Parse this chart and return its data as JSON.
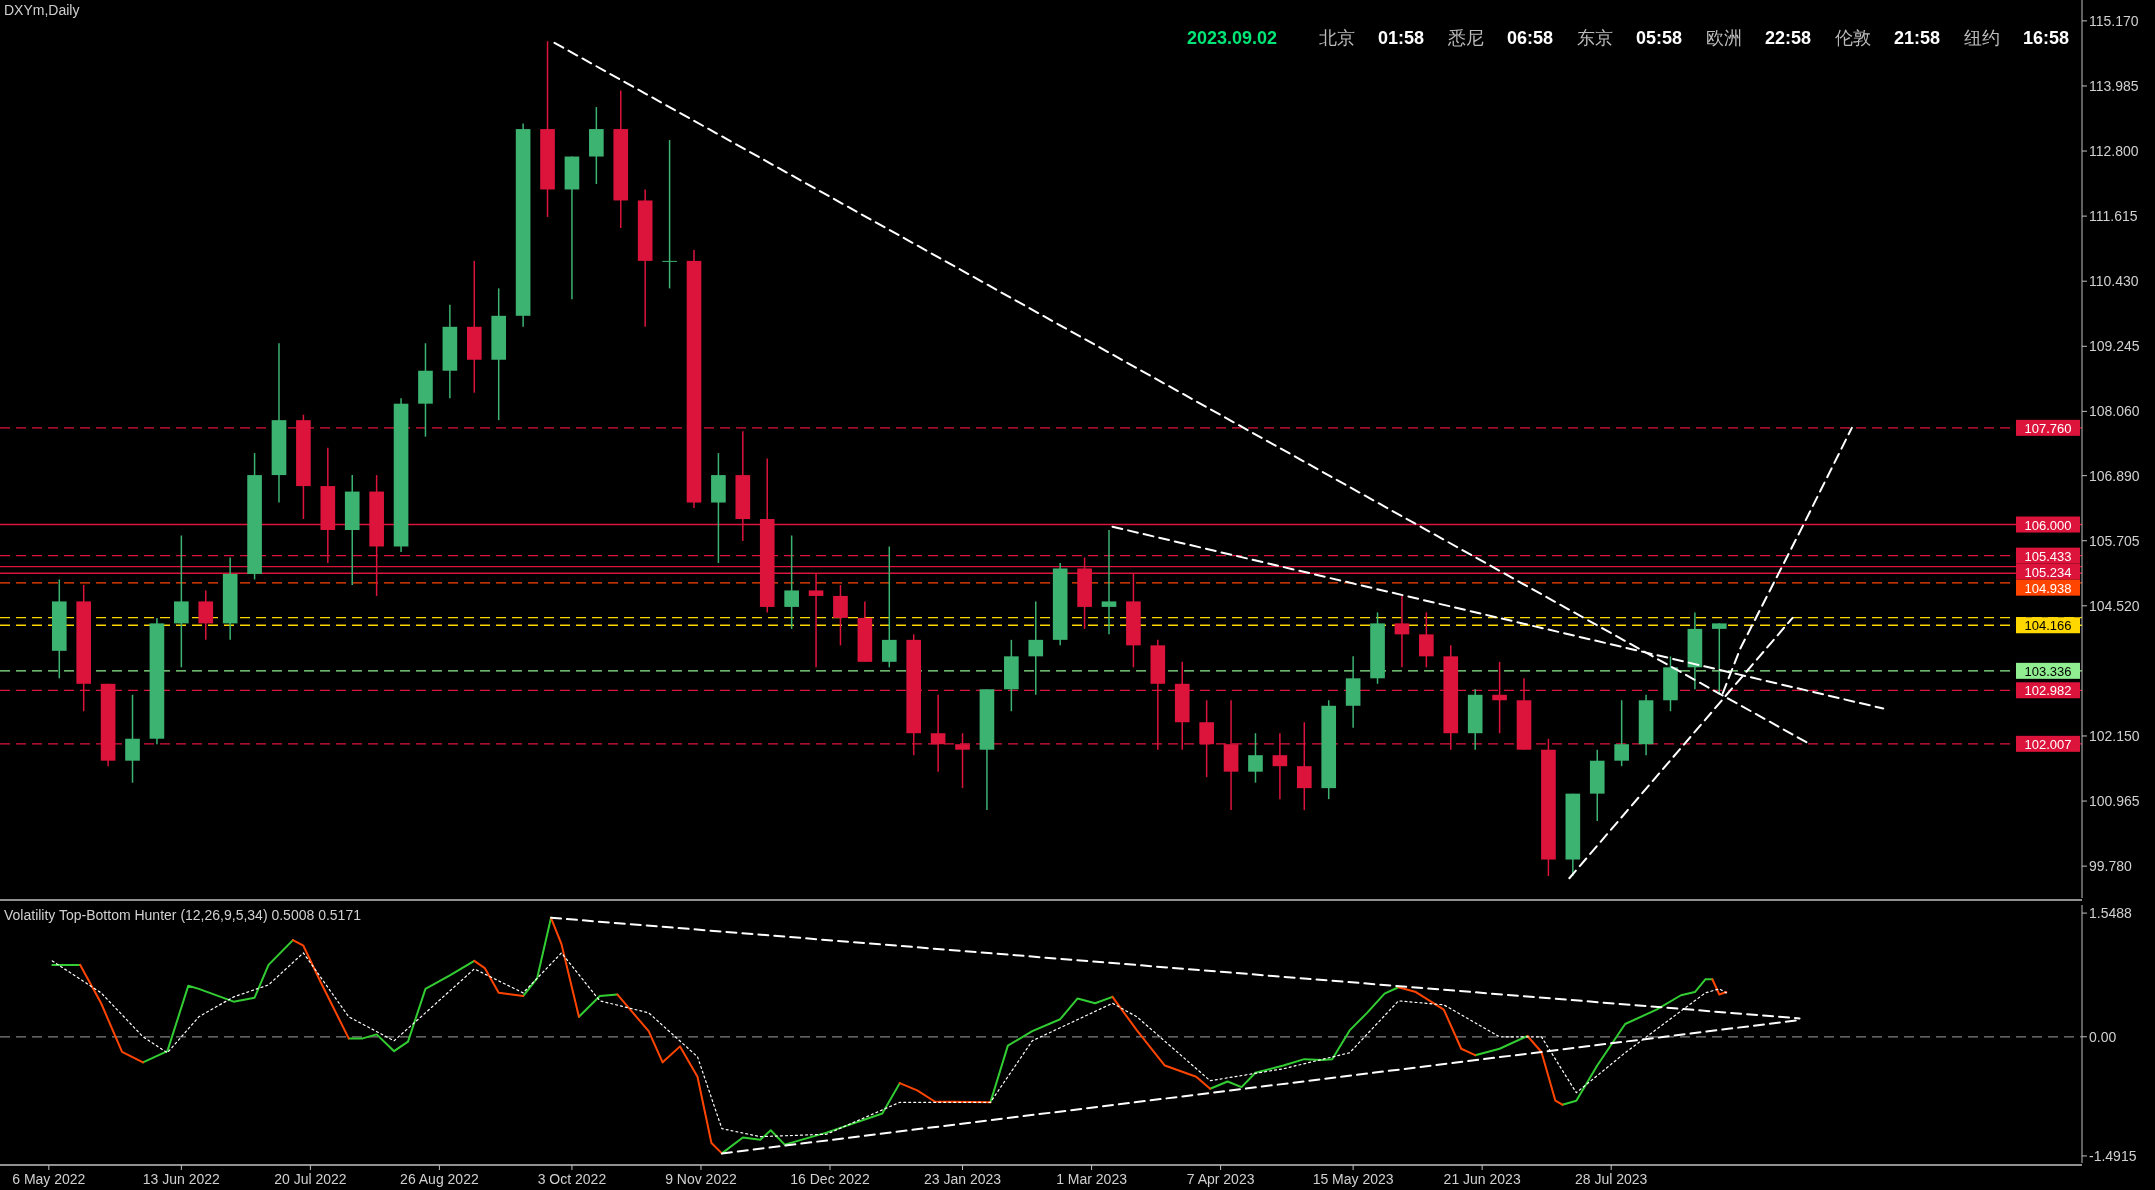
{
  "chart_data": [
    {
      "type": "candlestick",
      "title": "DXYm,Daily",
      "annotations": [
        "2023.09.02",
        "北京",
        "01:58",
        "悉尼",
        "06:58",
        "东京",
        "05:58",
        "欧洲",
        "22:58",
        "伦敦",
        "21:58",
        "纽约",
        "16:58"
      ],
      "x": [
        "2022-05-09",
        "2022-05-16",
        "2022-05-23",
        "2022-05-30",
        "2022-06-06",
        "2022-06-13",
        "2022-06-20",
        "2022-06-27",
        "2022-07-04",
        "2022-07-11",
        "2022-07-18",
        "2022-07-25",
        "2022-08-01",
        "2022-08-08",
        "2022-08-15",
        "2022-08-22",
        "2022-08-29",
        "2022-09-05",
        "2022-09-12",
        "2022-09-19",
        "2022-09-26",
        "2022-10-03",
        "2022-10-10",
        "2022-10-17",
        "2022-10-24",
        "2022-10-31",
        "2022-11-07",
        "2022-11-14",
        "2022-11-21",
        "2022-11-28",
        "2022-12-05",
        "2022-12-12",
        "2022-12-19",
        "2022-12-26",
        "2023-01-02",
        "2023-01-09",
        "2023-01-16",
        "2023-01-23",
        "2023-01-30",
        "2023-02-06",
        "2023-02-13",
        "2023-02-20",
        "2023-02-27",
        "2023-03-06",
        "2023-03-13",
        "2023-03-20",
        "2023-03-27",
        "2023-04-03",
        "2023-04-10",
        "2023-04-17",
        "2023-04-24",
        "2023-05-01",
        "2023-05-08",
        "2023-05-15",
        "2023-05-22",
        "2023-05-29",
        "2023-06-05",
        "2023-06-12",
        "2023-06-19",
        "2023-06-26",
        "2023-07-03",
        "2023-07-10",
        "2023-07-17",
        "2023-07-24",
        "2023-07-31",
        "2023-08-07",
        "2023-08-14",
        "2023-08-21",
        "2023-08-28"
      ],
      "ohlc": [
        [
          103.7,
          105.0,
          103.2,
          104.6
        ],
        [
          104.6,
          104.9,
          102.6,
          103.1
        ],
        [
          103.1,
          103.1,
          101.6,
          101.7
        ],
        [
          101.7,
          102.9,
          101.3,
          102.1
        ],
        [
          102.1,
          104.3,
          102.0,
          104.2
        ],
        [
          104.2,
          105.8,
          103.4,
          104.6
        ],
        [
          104.6,
          104.8,
          103.9,
          104.2
        ],
        [
          104.2,
          105.4,
          103.9,
          105.1
        ],
        [
          105.1,
          107.3,
          105.0,
          106.9
        ],
        [
          106.9,
          109.3,
          106.4,
          107.9
        ],
        [
          107.9,
          108.0,
          106.1,
          106.7
        ],
        [
          106.7,
          107.4,
          105.3,
          105.9
        ],
        [
          105.9,
          106.9,
          104.9,
          106.6
        ],
        [
          106.6,
          106.9,
          104.7,
          105.6
        ],
        [
          105.6,
          108.3,
          105.5,
          108.2
        ],
        [
          108.2,
          109.3,
          107.6,
          108.8
        ],
        [
          108.8,
          110.0,
          108.3,
          109.6
        ],
        [
          109.6,
          110.8,
          108.4,
          109.0
        ],
        [
          109.0,
          110.3,
          107.9,
          109.8
        ],
        [
          109.8,
          113.3,
          109.6,
          113.2
        ],
        [
          113.2,
          114.8,
          111.6,
          112.1
        ],
        [
          112.1,
          112.7,
          110.1,
          112.7
        ],
        [
          112.7,
          113.6,
          112.2,
          113.2
        ],
        [
          113.2,
          113.9,
          111.4,
          111.9
        ],
        [
          111.9,
          112.1,
          109.6,
          110.8
        ],
        [
          110.8,
          113.0,
          110.3,
          110.8
        ],
        [
          110.8,
          111.0,
          106.3,
          106.4
        ],
        [
          106.4,
          107.3,
          105.3,
          106.9
        ],
        [
          106.9,
          107.7,
          105.7,
          106.1
        ],
        [
          106.1,
          107.2,
          104.4,
          104.5
        ],
        [
          104.5,
          105.8,
          104.1,
          104.8
        ],
        [
          104.8,
          105.1,
          103.4,
          104.7
        ],
        [
          104.7,
          104.9,
          103.8,
          104.3
        ],
        [
          104.3,
          104.6,
          103.5,
          103.5
        ],
        [
          103.5,
          105.6,
          103.4,
          103.9
        ],
        [
          103.9,
          104.0,
          101.8,
          102.2
        ],
        [
          102.2,
          102.9,
          101.5,
          102.0
        ],
        [
          102.0,
          102.2,
          101.2,
          101.9
        ],
        [
          101.9,
          103.0,
          100.8,
          103.0
        ],
        [
          103.0,
          103.9,
          102.6,
          103.6
        ],
        [
          103.6,
          104.6,
          102.9,
          103.9
        ],
        [
          103.9,
          105.3,
          103.8,
          105.2
        ],
        [
          105.2,
          105.4,
          104.1,
          104.5
        ],
        [
          104.5,
          105.9,
          104.0,
          104.6
        ],
        [
          104.6,
          105.1,
          103.4,
          103.8
        ],
        [
          103.8,
          103.9,
          101.9,
          103.1
        ],
        [
          103.1,
          103.5,
          101.9,
          102.4
        ],
        [
          102.4,
          102.8,
          101.4,
          102.0
        ],
        [
          102.0,
          102.8,
          100.8,
          101.5
        ],
        [
          101.5,
          102.2,
          101.3,
          101.8
        ],
        [
          101.8,
          102.2,
          101.0,
          101.6
        ],
        [
          101.6,
          102.4,
          100.8,
          101.2
        ],
        [
          101.2,
          102.8,
          101.0,
          102.7
        ],
        [
          102.7,
          103.6,
          102.3,
          103.2
        ],
        [
          103.2,
          104.4,
          103.1,
          104.2
        ],
        [
          104.2,
          104.7,
          103.4,
          104.0
        ],
        [
          104.0,
          104.4,
          103.4,
          103.6
        ],
        [
          103.6,
          103.8,
          101.9,
          102.2
        ],
        [
          102.2,
          103.0,
          101.9,
          102.9
        ],
        [
          102.9,
          103.5,
          102.2,
          102.8
        ],
        [
          102.8,
          103.2,
          101.9,
          101.9
        ],
        [
          101.9,
          102.1,
          99.6,
          99.9
        ],
        [
          99.9,
          101.1,
          99.6,
          101.1
        ],
        [
          101.1,
          101.9,
          100.6,
          101.7
        ],
        [
          101.7,
          102.8,
          101.6,
          102.0
        ],
        [
          102.0,
          102.9,
          101.8,
          102.8
        ],
        [
          102.8,
          103.6,
          102.6,
          103.4
        ],
        [
          103.4,
          104.4,
          103.0,
          104.1
        ],
        [
          104.1,
          104.2,
          102.9,
          104.2
        ]
      ],
      "series": [
        {
          "type": "line",
          "color": "#ffffff",
          "line_style": "dashed",
          "x": [
            "2022-09-28",
            "2023-09-23"
          ],
          "values": [
            114.77,
            102.0
          ]
        },
        {
          "type": "line",
          "color": "#ffffff",
          "line_style": "dashed",
          "x": [
            "2023-03-07",
            "2023-10-14"
          ],
          "values": [
            105.96,
            102.65
          ]
        },
        {
          "type": "line",
          "color": "#ffffff",
          "line_style": "dashed",
          "x": [
            "2023-07-16",
            "2023-09-18"
          ],
          "values": [
            99.56,
            104.3
          ]
        },
        {
          "type": "line",
          "color": "#ffffff",
          "line_style": "dashed",
          "x": [
            "2023-08-29",
            "2023-09-03",
            "2023-09-21",
            "2023-10-05"
          ],
          "values": [
            102.93,
            103.74,
            105.98,
            107.76
          ]
        }
      ],
      "ref_lines": [
        {
          "axis": "y",
          "value": 107.76,
          "label": "107.760",
          "color": "#dc143c",
          "line_style": "dashed"
        },
        {
          "axis": "y",
          "value": 106.0,
          "label": "106.000",
          "color": "#dc143c",
          "line_style": "solid"
        },
        {
          "axis": "y",
          "value": 105.433,
          "label": "105.433",
          "color": "#dc143c",
          "line_style": "dashed"
        },
        {
          "axis": "y",
          "value": 105.234,
          "label": "105.234",
          "color": "#dc143c",
          "line_style": "solid"
        },
        {
          "axis": "y",
          "value": 105.113,
          "label": null,
          "color": "#dc143c",
          "line_style": "solid"
        },
        {
          "axis": "y",
          "value": 104.938,
          "label": "104.938",
          "color": "#ff4500",
          "line_style": "dashed"
        },
        {
          "axis": "y",
          "value": 104.306,
          "label": null,
          "color": "#ffd700",
          "line_style": "dashed"
        },
        {
          "axis": "y",
          "value": 104.166,
          "label": "104.166",
          "color": "#ffd700",
          "line_style": "dashed"
        },
        {
          "axis": "y",
          "value": 103.336,
          "label": "103.336",
          "color": "#90ee90",
          "line_style": "dashed"
        },
        {
          "axis": "y",
          "value": 102.982,
          "label": "102.982",
          "color": "#dc143c",
          "line_style": "dashed"
        },
        {
          "axis": "y",
          "value": 102.007,
          "label": "102.007",
          "color": "#dc143c",
          "line_style": "dashed"
        }
      ],
      "xlim": [
        "2022-04-22",
        "2023-12-10"
      ],
      "ylim": [
        99.2,
        115.55
      ],
      "yticks": [
        {
          "value": 115.17,
          "label": "115.170"
        },
        113.985,
        {
          "value": 112.8,
          "label": "112.800"
        },
        111.615,
        {
          "value": 110.43,
          "label": "110.430"
        },
        109.245,
        {
          "value": 108.06,
          "label": "108.060"
        },
        {
          "value": 106.89,
          "label": "106.890"
        },
        105.705,
        {
          "value": 104.52,
          "label": "104.520"
        },
        {
          "value": 102.15,
          "label": "102.150"
        },
        100.965,
        {
          "value": 99.78,
          "label": "99.780"
        }
      ],
      "tick_labels": "y"
    },
    {
      "type": "line",
      "title": "Volatility Top-Bottom Hunter (12,26,9,5,34) 0.5008 0.5171",
      "x": [
        "2022-05-07",
        "2022-05-15",
        "2022-05-21",
        "2022-05-27",
        "2022-06-02",
        "2022-06-09",
        "2022-06-15",
        "2022-06-18",
        "2022-06-28",
        "2022-07-04",
        "2022-07-08",
        "2022-07-15",
        "2022-07-18",
        "2022-07-23",
        "2022-07-31",
        "2022-08-04",
        "2022-08-08",
        "2022-08-13",
        "2022-08-17",
        "2022-08-22",
        "2022-08-29",
        "2022-09-05",
        "2022-09-08",
        "2022-09-12",
        "2022-09-19",
        "2022-09-23",
        "2022-09-27",
        "2022-09-30",
        "2022-10-05",
        "2022-10-11",
        "2022-10-16",
        "2022-10-25",
        "2022-10-29",
        "2022-11-03",
        "2022-11-08",
        "2022-11-12",
        "2022-11-15",
        "2022-11-21",
        "2022-11-26",
        "2022-11-29",
        "2022-12-03",
        "2022-12-15",
        "2022-12-31",
        "2023-01-05",
        "2023-01-10",
        "2023-01-15",
        "2023-01-31",
        "2023-02-05",
        "2023-02-12",
        "2023-02-20",
        "2023-02-25",
        "2023-03-02",
        "2023-03-07",
        "2023-03-14",
        "2023-03-22",
        "2023-03-31",
        "2023-04-04",
        "2023-04-09",
        "2023-04-13",
        "2023-04-17",
        "2023-04-25",
        "2023-05-01",
        "2023-05-06",
        "2023-05-09",
        "2023-05-14",
        "2023-05-19",
        "2023-05-24",
        "2023-05-28",
        "2023-06-02",
        "2023-06-10",
        "2023-06-15",
        "2023-06-19",
        "2023-06-26",
        "2023-07-04",
        "2023-07-08",
        "2023-07-12",
        "2023-07-14",
        "2023-07-18",
        "2023-07-24",
        "2023-08-01",
        "2023-08-10",
        "2023-08-17",
        "2023-08-21",
        "2023-08-24",
        "2023-08-26",
        "2023-08-28",
        "2023-08-30"
      ],
      "series": [
        {
          "color": "#32cd32",
          "values": [
            0.9,
            0.9,
            null,
            null,
            -0.32,
            -0.18,
            0.64,
            0.6,
            0.44,
            0.49,
            0.9,
            1.21,
            null,
            null,
            -0.02,
            -0.02,
            0.03,
            -0.18,
            -0.06,
            0.6,
            0.77,
            0.95,
            null,
            null,
            0.51,
            0.73,
            1.49,
            null,
            0.25,
            0.51,
            0.53,
            null,
            null,
            null,
            null,
            null,
            -1.46,
            -1.26,
            -1.29,
            -1.17,
            -1.35,
            -1.2,
            -0.96,
            -0.58,
            null,
            null,
            -0.82,
            -0.11,
            0.07,
            0.22,
            0.48,
            0.42,
            0.5,
            null,
            null,
            null,
            -0.65,
            -0.56,
            -0.63,
            -0.45,
            -0.36,
            -0.28,
            -0.29,
            -0.28,
            0.08,
            0.3,
            0.54,
            0.62,
            null,
            null,
            null,
            -0.23,
            -0.15,
            0.01,
            null,
            null,
            -0.85,
            -0.8,
            -0.36,
            0.16,
            0.34,
            0.52,
            0.56,
            0.72,
            0.72,
            null,
            null
          ]
        },
        {
          "color": "#ff4500",
          "values": [
            null,
            0.9,
            0.42,
            -0.19,
            -0.32,
            null,
            null,
            null,
            null,
            null,
            null,
            1.21,
            1.14,
            0.68,
            -0.02,
            null,
            null,
            null,
            null,
            null,
            null,
            0.95,
            0.86,
            0.55,
            0.51,
            null,
            1.49,
            1.16,
            0.25,
            null,
            0.53,
            0.07,
            -0.32,
            -0.12,
            -0.5,
            -1.33,
            -1.46,
            null,
            null,
            null,
            null,
            null,
            null,
            -0.58,
            -0.67,
            -0.81,
            -0.82,
            null,
            null,
            null,
            null,
            null,
            0.5,
            0.08,
            -0.36,
            -0.5,
            -0.65,
            null,
            null,
            null,
            null,
            null,
            null,
            null,
            null,
            null,
            null,
            0.62,
            0.56,
            0.34,
            -0.15,
            -0.23,
            null,
            0.01,
            -0.19,
            -0.8,
            -0.85,
            null,
            null,
            null,
            null,
            null,
            null,
            null,
            0.72,
            0.53,
            0.56
          ]
        },
        {
          "color": "#ffffff",
          "line_style": "dotted",
          "x": [
            "2022-05-07",
            "2022-05-21",
            "2022-06-02",
            "2022-06-09",
            "2022-06-18",
            "2022-06-28",
            "2022-07-08",
            "2022-07-18",
            "2022-07-31",
            "2022-08-13",
            "2022-08-22",
            "2022-09-05",
            "2022-09-19",
            "2022-09-30",
            "2022-10-11",
            "2022-10-25",
            "2022-11-08",
            "2022-11-15",
            "2022-11-26",
            "2022-12-15",
            "2023-01-05",
            "2023-01-31",
            "2023-02-12",
            "2023-03-07",
            "2023-03-14",
            "2023-04-04",
            "2023-04-25",
            "2023-05-14",
            "2023-05-28",
            "2023-06-10",
            "2023-06-26",
            "2023-07-08",
            "2023-07-18",
            "2023-08-01",
            "2023-08-24",
            "2023-08-28",
            "2023-08-30"
          ],
          "values": [
            0.95,
            0.55,
            0.0,
            -0.2,
            0.25,
            0.5,
            0.65,
            1.05,
            0.25,
            -0.05,
            0.3,
            0.85,
            0.55,
            1.05,
            0.45,
            0.3,
            -0.25,
            -1.15,
            -1.25,
            -1.22,
            -0.82,
            -0.82,
            -0.05,
            0.42,
            0.25,
            -0.55,
            -0.4,
            -0.2,
            0.45,
            0.4,
            0.0,
            0.0,
            -0.7,
            -0.2,
            0.55,
            0.6,
            0.55
          ]
        },
        {
          "color": "#ffffff",
          "line_style": "dashed",
          "x": [
            "2022-09-27",
            "2023-09-20"
          ],
          "values": [
            1.49,
            0.23
          ]
        },
        {
          "color": "#ffffff",
          "line_style": "dashed",
          "x": [
            "2022-11-15",
            "2023-09-20"
          ],
          "values": [
            -1.46,
            0.21
          ]
        }
      ],
      "ref_lines": [
        {
          "axis": "y",
          "value": 0,
          "label": null,
          "color": "#808080",
          "line_style": "dashed"
        }
      ],
      "xlim": [
        "2022-04-22",
        "2023-12-10"
      ],
      "ylim": [
        -1.58,
        1.65
      ],
      "yticks": [
        1.5488,
        {
          "value": 0,
          "label": "0.00"
        },
        -1.4915
      ],
      "xticks": [
        {
          "value": "2022-05-06",
          "label": "6 May 2022"
        },
        {
          "value": "2022-06-13",
          "label": "13 Jun 2022"
        },
        {
          "value": "2022-07-20",
          "label": "20 Jul 2022"
        },
        {
          "value": "2022-08-26",
          "label": "26 Aug 2022"
        },
        {
          "value": "2022-10-03",
          "label": "3 Oct 2022"
        },
        {
          "value": "2022-11-09",
          "label": "9 Nov 2022"
        },
        {
          "value": "2022-12-16",
          "label": "16 Dec 2022"
        },
        {
          "value": "2023-01-23",
          "label": "23 Jan 2023"
        },
        {
          "value": "2023-03-01",
          "label": "1 Mar 2023"
        },
        {
          "value": "2023-04-07",
          "label": "7 Apr 2023"
        },
        {
          "value": "2023-05-15",
          "label": "15 May 2023"
        },
        {
          "value": "2023-06-21",
          "label": "21 Jun 2023"
        },
        {
          "value": "2023-07-28",
          "label": "28 Jul 2023"
        }
      ]
    }
  ]
}
